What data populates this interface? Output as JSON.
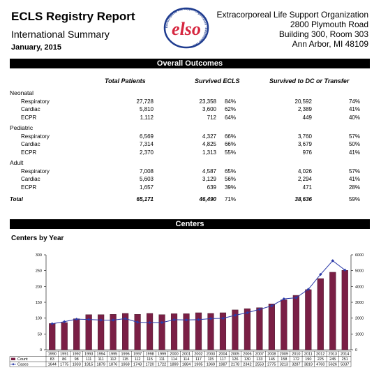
{
  "header": {
    "title": "ECLS Registry Report",
    "subtitle": "International Summary",
    "date": "January, 2015",
    "org_lines": [
      "Extracorporeal Life Support Organization",
      "2800 Plymouth Road",
      "Building 300, Room 303",
      "Ann Arbor, MI 48109"
    ],
    "logo_letters": "elso",
    "logo_ring_text": "Extracorporeal Life Support Organization · Established 1989",
    "logo_color": "#d6263f",
    "logo_ring_color": "#1f3c8f"
  },
  "overall": {
    "heading": "Overall Outcomes",
    "columns": [
      "Total Patients",
      "Survived ECLS",
      "Survived to DC or Transfer"
    ],
    "groups": [
      {
        "name": "Neonatal",
        "rows": [
          {
            "label": "Respiratory",
            "total": "27,728",
            "ecls": "23,358",
            "ecls_pct": "84%",
            "dc": "20,592",
            "dc_pct": "74%"
          },
          {
            "label": "Cardiac",
            "total": "5,810",
            "ecls": "3,600",
            "ecls_pct": "62%",
            "dc": "2,389",
            "dc_pct": "41%"
          },
          {
            "label": "ECPR",
            "total": "1,112",
            "ecls": "712",
            "ecls_pct": "64%",
            "dc": "449",
            "dc_pct": "40%"
          }
        ]
      },
      {
        "name": "Pediatric",
        "rows": [
          {
            "label": "Respiratory",
            "total": "6,569",
            "ecls": "4,327",
            "ecls_pct": "66%",
            "dc": "3,760",
            "dc_pct": "57%"
          },
          {
            "label": "Cardiac",
            "total": "7,314",
            "ecls": "4,825",
            "ecls_pct": "66%",
            "dc": "3,679",
            "dc_pct": "50%"
          },
          {
            "label": "ECPR",
            "total": "2,370",
            "ecls": "1,313",
            "ecls_pct": "55%",
            "dc": "976",
            "dc_pct": "41%"
          }
        ]
      },
      {
        "name": "Adult",
        "rows": [
          {
            "label": "Respiratory",
            "total": "7,008",
            "ecls": "4,587",
            "ecls_pct": "65%",
            "dc": "4,026",
            "dc_pct": "57%"
          },
          {
            "label": "Cardiac",
            "total": "5,603",
            "ecls": "3,129",
            "ecls_pct": "56%",
            "dc": "2,294",
            "dc_pct": "41%"
          },
          {
            "label": "ECPR",
            "total": "1,657",
            "ecls": "639",
            "ecls_pct": "39%",
            "dc": "471",
            "dc_pct": "28%"
          }
        ]
      }
    ],
    "total": {
      "label": "Total",
      "total": "65,171",
      "ecls": "46,490",
      "ecls_pct": "71%",
      "dc": "38,636",
      "dc_pct": "59%"
    }
  },
  "centers": {
    "heading": "Centers",
    "chart_title": "Centers by Year"
  },
  "chart_data": {
    "type": "bar",
    "title": "Centers by Year",
    "categories": [
      "1990",
      "1991",
      "1992",
      "1993",
      "1994",
      "1995",
      "1996",
      "1997",
      "1998",
      "1999",
      "2000",
      "2001",
      "2002",
      "2003",
      "2004",
      "2005",
      "2006",
      "2007",
      "2008",
      "2009",
      "2010",
      "2011",
      "2012",
      "2013",
      "2014"
    ],
    "series": [
      {
        "name": "Count",
        "type": "bar",
        "axis": "left",
        "color": "#7a1f45",
        "values": [
          83,
          86,
          98,
          111,
          111,
          112,
          115,
          112,
          115,
          111,
          114,
          114,
          117,
          115,
          117,
          126,
          130,
          133,
          145,
          158,
          172,
          190,
          225,
          245,
          251
        ]
      },
      {
        "name": "Cases",
        "type": "line",
        "axis": "right",
        "color": "#2b3aa8",
        "values": [
          1644,
          1775,
          1933,
          1915,
          1879,
          1876,
          1968,
          1743,
          1720,
          1722,
          1899,
          1884,
          1905,
          1969,
          1987,
          2178,
          2342,
          2553,
          2775,
          3213,
          3287,
          3819,
          4760,
          5626,
          5037
        ]
      }
    ],
    "y_left": {
      "min": 0,
      "max": 300,
      "ticks": [
        0,
        50,
        100,
        150,
        200,
        250,
        300
      ]
    },
    "y_right": {
      "min": 0,
      "max": 6000,
      "ticks": [
        0,
        1000,
        2000,
        3000,
        4000,
        5000,
        6000
      ]
    },
    "table_row_labels": [
      "Count",
      "Cases"
    ],
    "grid": false
  }
}
